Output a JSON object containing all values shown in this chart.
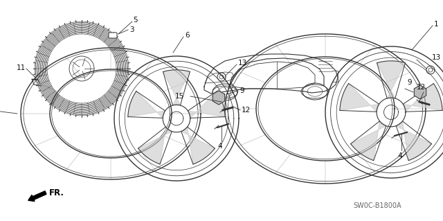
{
  "bg_color": "#ffffff",
  "diagram_code": "SW0C-B1800A",
  "fr_label": "FR.",
  "line_color": "#333333",
  "label_color": "#111111",
  "label_fontsize": 7.5,
  "figsize": [
    6.4,
    3.19
  ],
  "dpi": 100
}
